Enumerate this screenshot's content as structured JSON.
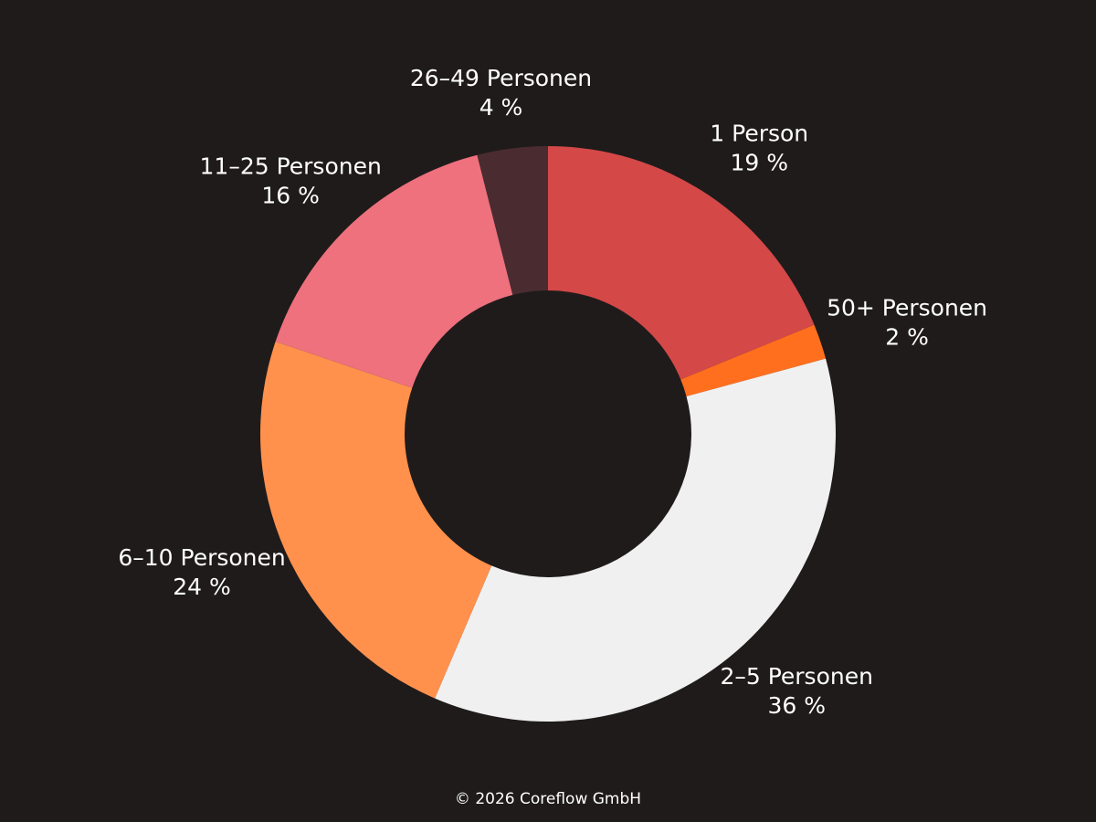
{
  "chart_data": {
    "type": "donut",
    "categories": [
      "1 Person",
      "50+ Personen",
      "2–5 Personen",
      "6–10 Personen",
      "11–25 Personen",
      "26–49 Personen"
    ],
    "values": [
      19,
      2,
      36,
      24,
      16,
      4
    ],
    "value_labels": [
      "19 %",
      "2 %",
      "36 %",
      "24 %",
      "16 %",
      "4 %"
    ],
    "colors": [
      "#d44848",
      "#ff6f1e",
      "#f0f0f0",
      "#ff914d",
      "#ee717d",
      "#4a2c30"
    ],
    "footer": "© 2026 Coreflow GmbH"
  }
}
